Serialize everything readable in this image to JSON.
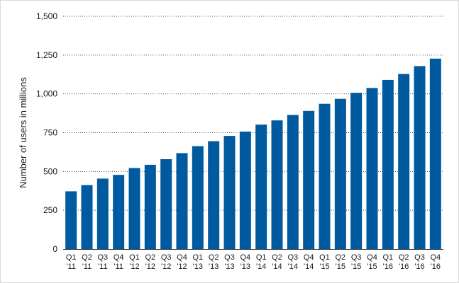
{
  "chart_data": {
    "type": "bar",
    "ylabel": "Number of users in millions",
    "xlabel": "",
    "ylim": [
      0,
      1500
    ],
    "yticks": [
      0,
      250,
      500,
      750,
      1000,
      1250,
      1500
    ],
    "ytick_labels": [
      "0",
      "250",
      "500",
      "750",
      "1,000",
      "1,250",
      "1,500"
    ],
    "grid": "horizontal dotted",
    "bar_color": "#005aa0",
    "categories": [
      [
        "Q1",
        "'11"
      ],
      [
        "Q2",
        "'11"
      ],
      [
        "Q3",
        "'11"
      ],
      [
        "Q4",
        "'11"
      ],
      [
        "Q1",
        "'12"
      ],
      [
        "Q2",
        "'12"
      ],
      [
        "Q3",
        "'12"
      ],
      [
        "Q4",
        "'12"
      ],
      [
        "Q1",
        "'13"
      ],
      [
        "Q2",
        "'13"
      ],
      [
        "Q3",
        "'13"
      ],
      [
        "Q4",
        "'13"
      ],
      [
        "Q1",
        "'14"
      ],
      [
        "Q2",
        "'14"
      ],
      [
        "Q3",
        "'14"
      ],
      [
        "Q4",
        "'14"
      ],
      [
        "Q1",
        "'15"
      ],
      [
        "Q2",
        "'15"
      ],
      [
        "Q3",
        "'15"
      ],
      [
        "Q4",
        "'15"
      ],
      [
        "Q1",
        "'16"
      ],
      [
        "Q2",
        "'16"
      ],
      [
        "Q3",
        "'16"
      ],
      [
        "Q4",
        "'16"
      ]
    ],
    "values": [
      372,
      412,
      454,
      478,
      522,
      543,
      579,
      618,
      663,
      695,
      729,
      757,
      802,
      829,
      864,
      890,
      936,
      968,
      1007,
      1038,
      1090,
      1128,
      1179,
      1227
    ]
  }
}
